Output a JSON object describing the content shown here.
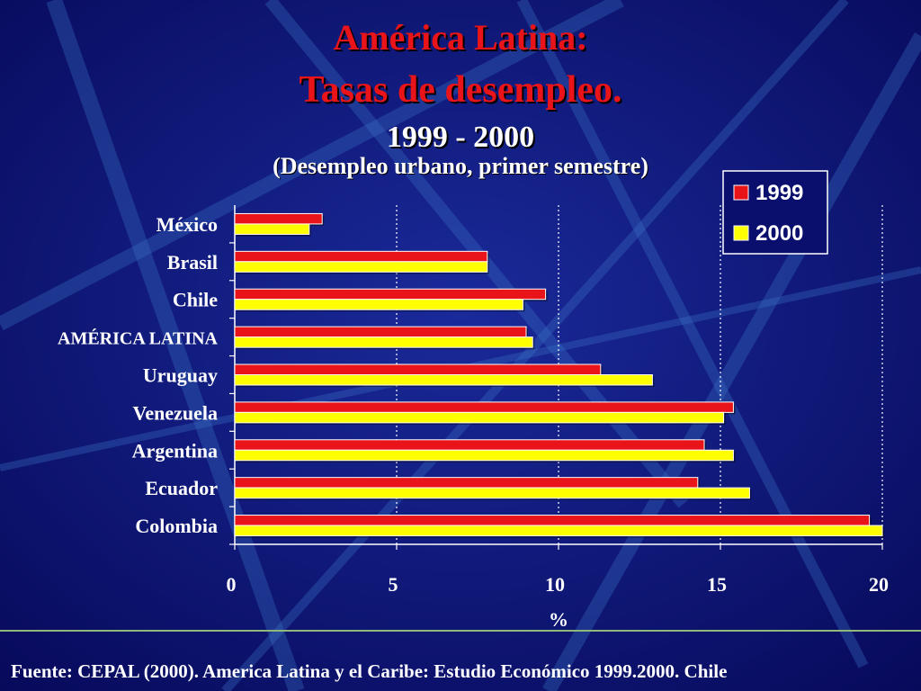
{
  "title_line1": "América Latina:",
  "title_line2": "Tasas de desempleo.",
  "years": "1999 - 2000",
  "subtitle": "(Desempleo urbano, primer semestre)",
  "footer": "Fuente: CEPAL (2000). America Latina y el Caribe: Estudio Económico 1999.2000. Chile",
  "colors": {
    "background": "#0a0f6e",
    "series_1999": "#e8141a",
    "series_2000": "#ffff00",
    "title": "#e8141a"
  },
  "chart_data": {
    "type": "bar",
    "orientation": "horizontal",
    "categories": [
      "México",
      "Brasil",
      "Chile",
      "AMÉRICA LATINA",
      "Uruguay",
      "Venezuela",
      "Argentina",
      "Ecuador",
      "Colombia"
    ],
    "series": [
      {
        "name": "1999",
        "values": [
          2.7,
          7.8,
          9.6,
          9.0,
          11.3,
          15.4,
          14.5,
          14.3,
          19.6
        ]
      },
      {
        "name": "2000",
        "values": [
          2.3,
          7.8,
          8.9,
          9.2,
          12.9,
          15.1,
          15.4,
          15.9,
          20.0
        ]
      }
    ],
    "xlabel": "%",
    "xlim": [
      0,
      20
    ],
    "xticks": [
      0,
      5,
      10,
      15,
      20
    ],
    "grid": "vertical dotted",
    "legend": "top-right"
  }
}
